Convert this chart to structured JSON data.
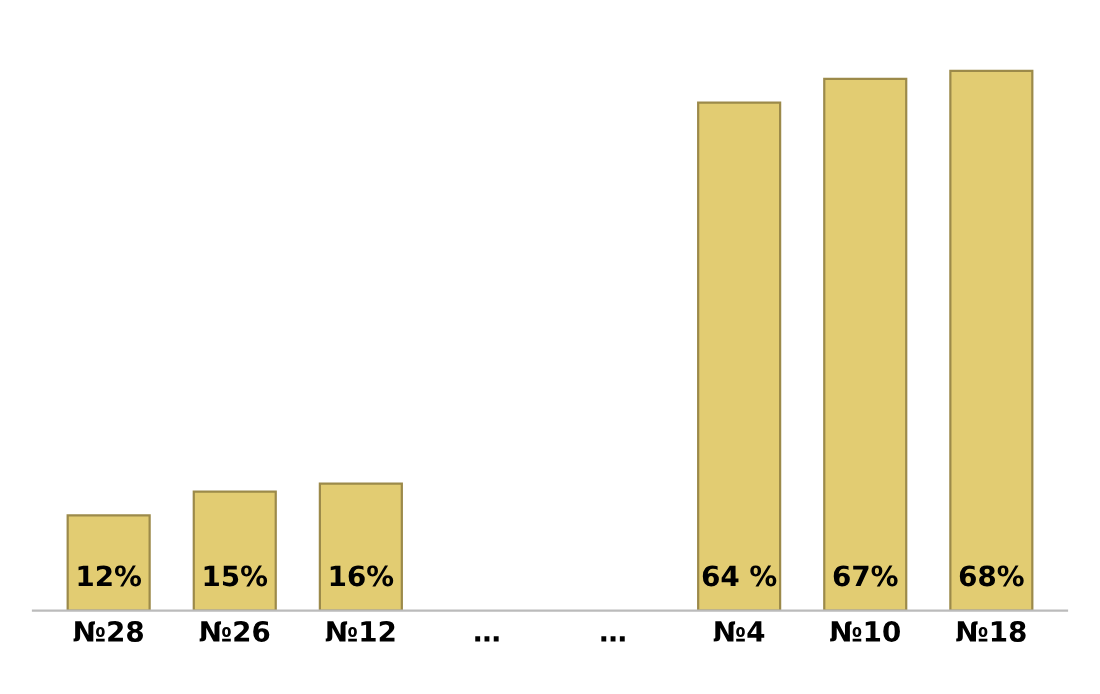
{
  "chart_data": {
    "type": "bar",
    "categories": [
      "№28",
      "№26",
      "№12",
      "…",
      "…",
      "№4",
      "№10",
      "№18"
    ],
    "values": [
      12,
      15,
      16,
      null,
      null,
      64,
      67,
      68
    ],
    "value_labels": [
      "12%",
      "15%",
      "16%",
      null,
      null,
      "64 %",
      "67%",
      "68%"
    ],
    "color": "#e2cc72",
    "grid": false,
    "legend": false
  }
}
